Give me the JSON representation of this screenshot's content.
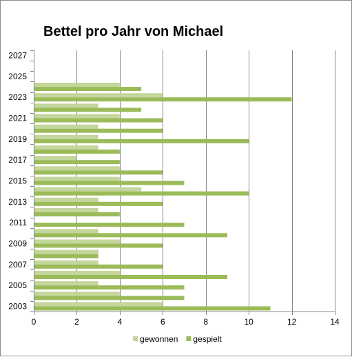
{
  "chart_data": {
    "type": "bar",
    "orientation": "horizontal",
    "title": "Bettel pro Jahr von Michael",
    "xlabel": "",
    "ylabel": "",
    "xlim": [
      0,
      14
    ],
    "x_ticks": [
      "0",
      "2",
      "4",
      "6",
      "8",
      "10",
      "12",
      "14"
    ],
    "categories": [
      "2003",
      "2004",
      "2005",
      "2006",
      "2007",
      "2008",
      "2009",
      "2010",
      "2011",
      "2012",
      "2013",
      "2014",
      "2015",
      "2016",
      "2017",
      "2018",
      "2019",
      "2020",
      "2021",
      "2022",
      "2023",
      "2024",
      "2025",
      "2026",
      "2027"
    ],
    "category_labels": [
      "2003",
      "",
      "2005",
      "",
      "2007",
      "",
      "2009",
      "",
      "2011",
      "",
      "2013",
      "",
      "2015",
      "",
      "2017",
      "",
      "2019",
      "",
      "2021",
      "",
      "2023",
      "",
      "2025",
      "",
      "2027"
    ],
    "series": [
      {
        "name": "gewonnen",
        "color": "#c3d69b",
        "values": [
          6,
          4,
          3,
          4,
          3,
          3,
          4,
          3,
          0,
          3,
          3,
          5,
          4,
          4,
          2,
          3,
          3,
          3,
          4,
          3,
          6,
          4,
          null,
          null,
          null
        ]
      },
      {
        "name": "gespielt",
        "color": "#9bbb59",
        "values": [
          11,
          7,
          7,
          9,
          6,
          3,
          6,
          9,
          7,
          4,
          6,
          10,
          7,
          6,
          4,
          4,
          10,
          6,
          6,
          5,
          12,
          5,
          null,
          null,
          null
        ]
      }
    ],
    "grid": "vertical",
    "legend_position": "bottom"
  }
}
